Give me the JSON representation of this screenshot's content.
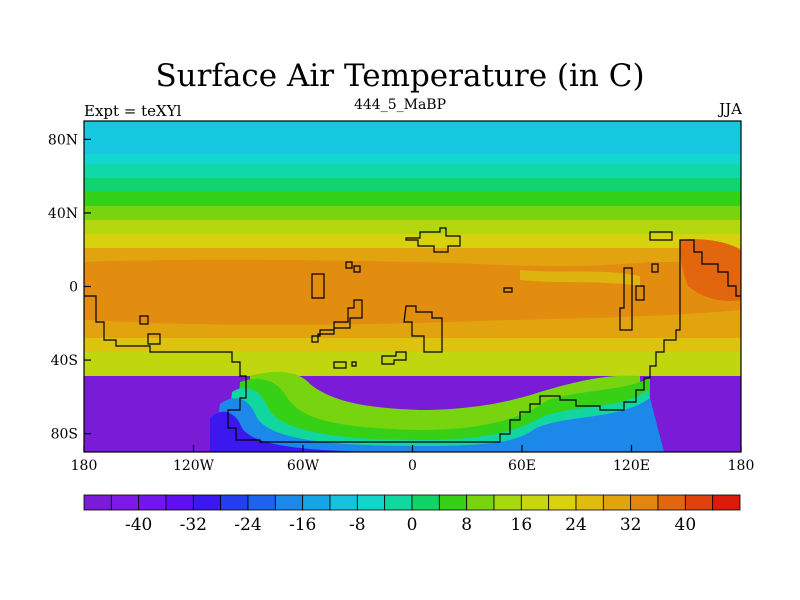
{
  "title": "Surface Air Temperature (in C)",
  "left_label": "Expt = teXYl",
  "center_label": "444_5_MaBP",
  "right_label": "JJA",
  "map": {
    "lon_range": [
      -180,
      180
    ],
    "lat_range": [
      -90,
      90
    ],
    "y_ticks": [
      {
        "lat": 80,
        "label": "80N"
      },
      {
        "lat": 40,
        "label": "40N"
      },
      {
        "lat": 0,
        "label": "0"
      },
      {
        "lat": -40,
        "label": "40S"
      },
      {
        "lat": -80,
        "label": "80S"
      }
    ],
    "x_ticks": [
      {
        "lon": -180,
        "label": "180"
      },
      {
        "lon": -120,
        "label": "120W"
      },
      {
        "lon": -60,
        "label": "60W"
      },
      {
        "lon": 0,
        "label": "0"
      },
      {
        "lon": 60,
        "label": "60E"
      },
      {
        "lon": 120,
        "label": "120E"
      },
      {
        "lon": 180,
        "label": "180"
      }
    ]
  },
  "colorbar": {
    "boxes": 24,
    "min": -48,
    "max": 48,
    "labels": [
      "-40",
      "-32",
      "-24",
      "-16",
      "-8",
      "0",
      "8",
      "16",
      "24",
      "32",
      "40"
    ],
    "colors": [
      "#7a1bd8",
      "#7d18e6",
      "#7215ee",
      "#6010f0",
      "#3c18f0",
      "#2440ee",
      "#1c64ee",
      "#1c88ea",
      "#16a6e6",
      "#16c2e0",
      "#12d6cc",
      "#10d8a0",
      "#12d466",
      "#36d016",
      "#78d40e",
      "#a8d80e",
      "#c8d610",
      "#dad20e",
      "#e0bc0e",
      "#e2a40e",
      "#e28610",
      "#e2660e",
      "#e0420e",
      "#dc1a0c"
    ]
  }
}
